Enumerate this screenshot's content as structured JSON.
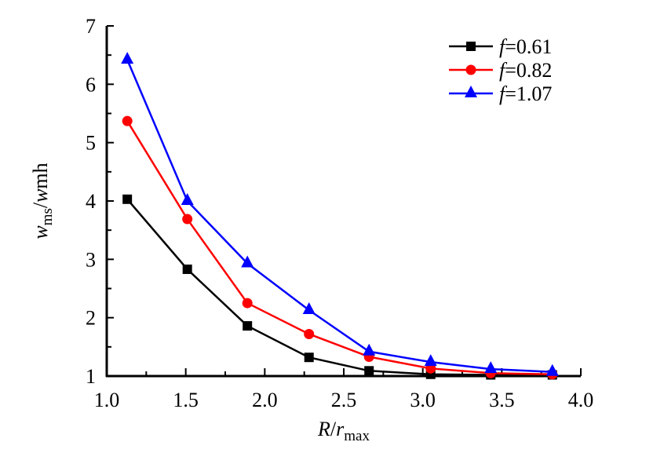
{
  "chart_data": {
    "type": "line",
    "title": "",
    "xlabel": {
      "main": "R",
      "sep": "/",
      "var": "r",
      "sub": "max"
    },
    "ylabel": {
      "var1": "w",
      "sub1": "ms",
      "sep": "/",
      "var2": "w",
      "sub2": "mh"
    },
    "xlim": [
      1.0,
      4.0
    ],
    "ylim": [
      1,
      7
    ],
    "xticks": [
      "1.0",
      "1.5",
      "2.0",
      "2.5",
      "3.0",
      "3.5",
      "4.0"
    ],
    "yticks": [
      "1",
      "2",
      "3",
      "4",
      "5",
      "6",
      "7"
    ],
    "grid": false,
    "legend_position": "top-right",
    "x": [
      1.13,
      1.51,
      1.89,
      2.28,
      2.66,
      3.05,
      3.43,
      3.82
    ],
    "series": [
      {
        "name": "f",
        "value_label": "=0.61",
        "color": "#000000",
        "marker": "square",
        "values": [
          4.03,
          2.83,
          1.86,
          1.32,
          1.09,
          1.03,
          1.02,
          1.02
        ]
      },
      {
        "name": "f",
        "value_label": "=0.82",
        "color": "#ff0000",
        "marker": "circle",
        "values": [
          5.37,
          3.69,
          2.25,
          1.72,
          1.33,
          1.13,
          1.05,
          1.03
        ]
      },
      {
        "name": "f",
        "value_label": "=1.07",
        "color": "#0000ff",
        "marker": "triangle",
        "values": [
          6.42,
          4.0,
          2.93,
          2.13,
          1.42,
          1.24,
          1.12,
          1.07
        ]
      }
    ]
  }
}
